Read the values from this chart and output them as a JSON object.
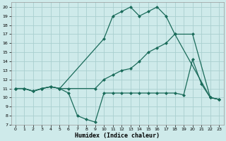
{
  "line1_x": [
    0,
    1,
    2,
    3,
    4,
    5,
    10,
    11,
    12,
    13,
    14,
    15,
    16,
    17,
    18,
    22,
    23
  ],
  "line1_y": [
    11,
    11,
    10.7,
    11,
    11.2,
    11,
    16.5,
    19,
    19.5,
    20,
    19,
    19.5,
    20,
    19,
    17,
    10,
    9.8
  ],
  "line2_x": [
    0,
    1,
    2,
    3,
    4,
    5,
    6,
    9,
    10,
    11,
    12,
    13,
    14,
    15,
    16,
    17,
    18,
    20,
    22,
    23
  ],
  "line2_y": [
    11,
    11,
    10.7,
    11,
    11.2,
    11,
    11,
    11,
    12,
    12.5,
    13,
    13.2,
    14,
    15,
    15.5,
    16,
    17,
    17,
    10,
    9.8
  ],
  "line3_x": [
    0,
    1,
    2,
    3,
    4,
    5,
    6,
    7,
    8,
    9,
    10,
    11,
    12,
    13,
    14,
    15,
    16,
    17,
    18,
    19,
    20,
    21,
    22,
    23
  ],
  "line3_y": [
    11,
    11,
    10.7,
    11,
    11.2,
    11,
    10.5,
    8.0,
    7.6,
    7.3,
    10.5,
    10.5,
    10.5,
    10.5,
    10.5,
    10.5,
    10.5,
    10.5,
    10.5,
    10.3,
    14.2,
    11.5,
    10,
    9.8
  ],
  "line_color": "#1a6b5a",
  "bg_color": "#ceeaea",
  "grid_color": "#aacfcf",
  "xlabel": "Humidex (Indice chaleur)",
  "xlim": [
    -0.5,
    23.5
  ],
  "ylim": [
    7,
    20.5
  ],
  "yticks": [
    7,
    8,
    9,
    10,
    11,
    12,
    13,
    14,
    15,
    16,
    17,
    18,
    19,
    20
  ],
  "xticks": [
    0,
    1,
    2,
    3,
    4,
    5,
    6,
    7,
    8,
    9,
    10,
    11,
    12,
    13,
    14,
    15,
    16,
    17,
    18,
    19,
    20,
    21,
    22,
    23
  ],
  "markersize": 2.5,
  "linewidth": 0.9
}
